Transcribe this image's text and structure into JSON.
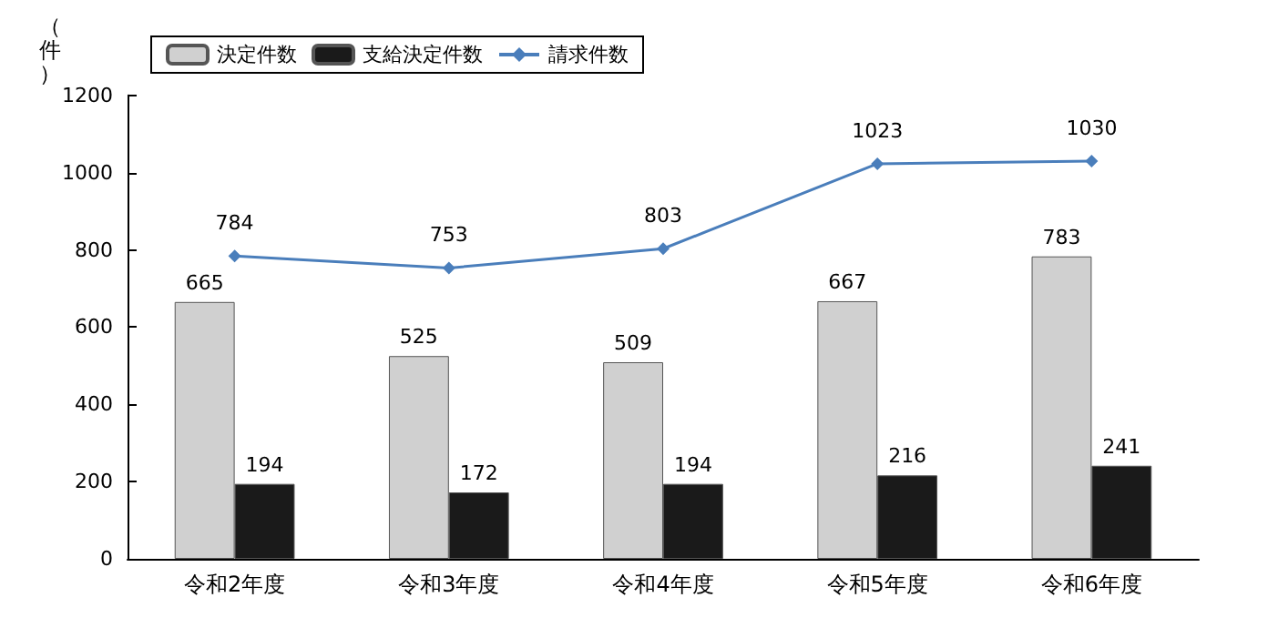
{
  "chart_data": {
    "type": "bar",
    "ylabel": "（件）",
    "categories": [
      "令和2年度",
      "令和3年度",
      "令和4年度",
      "令和5年度",
      "令和6年度"
    ],
    "series": [
      {
        "name": "決定件数",
        "color": "#d0d0d0",
        "values": [
          665,
          525,
          509,
          667,
          783
        ]
      },
      {
        "name": "支給決定件数",
        "color": "#1a1a1a",
        "values": [
          194,
          172,
          194,
          216,
          241
        ]
      },
      {
        "name": "請求件数",
        "type": "line",
        "color": "#4a7ebb",
        "marker": "diamond",
        "values": [
          784,
          753,
          803,
          1023,
          1030
        ]
      }
    ],
    "ylim": [
      0,
      1200
    ],
    "yticks": [
      0,
      200,
      400,
      600,
      800,
      1000,
      1200
    ],
    "grid": false,
    "legend": "top left",
    "data_labels": true
  }
}
